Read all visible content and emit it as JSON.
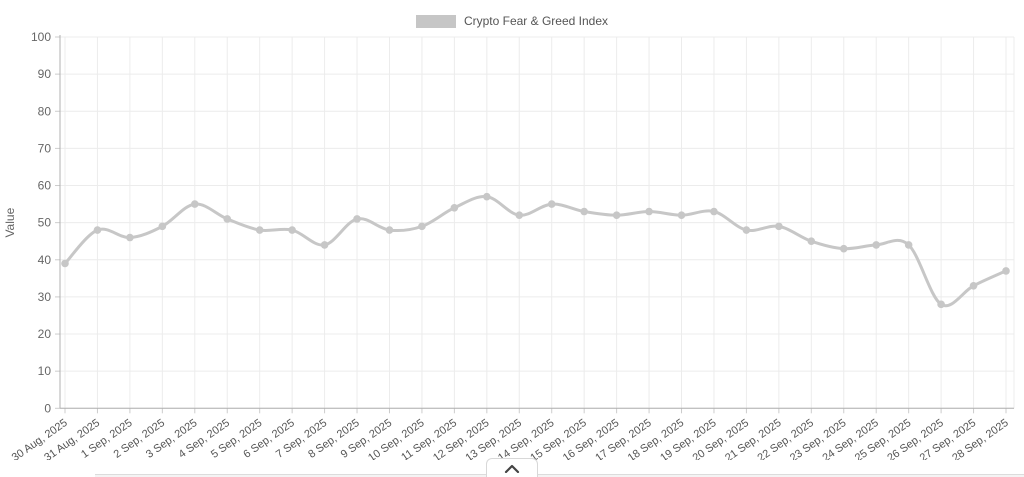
{
  "legend": {
    "label": "Crypto Fear & Greed Index",
    "swatch_color": "#c6c6c6"
  },
  "chart_data": {
    "type": "line",
    "title": "Crypto Fear & Greed Index",
    "xlabel": "",
    "ylabel": "Value",
    "ylim": [
      0,
      100
    ],
    "y_ticks": [
      0,
      10,
      20,
      30,
      40,
      50,
      60,
      70,
      80,
      90,
      100
    ],
    "grid": true,
    "legend_position": "top",
    "categories": [
      "30 Aug, 2025",
      "31 Aug, 2025",
      "1 Sep, 2025",
      "2 Sep, 2025",
      "3 Sep, 2025",
      "4 Sep, 2025",
      "5 Sep, 2025",
      "6 Sep, 2025",
      "7 Sep, 2025",
      "8 Sep, 2025",
      "9 Sep, 2025",
      "10 Sep, 2025",
      "11 Sep, 2025",
      "12 Sep, 2025",
      "13 Sep, 2025",
      "14 Sep, 2025",
      "15 Sep, 2025",
      "16 Sep, 2025",
      "17 Sep, 2025",
      "18 Sep, 2025",
      "19 Sep, 2025",
      "20 Sep, 2025",
      "21 Sep, 2025",
      "22 Sep, 2025",
      "23 Sep, 2025",
      "24 Sep, 2025",
      "25 Sep, 2025",
      "26 Sep, 2025",
      "27 Sep, 2025",
      "28 Sep, 2025"
    ],
    "series": [
      {
        "name": "Crypto Fear & Greed Index",
        "values": [
          39,
          48,
          46,
          49,
          55,
          51,
          48,
          48,
          44,
          51,
          48,
          49,
          54,
          57,
          52,
          55,
          53,
          52,
          53,
          52,
          53,
          48,
          49,
          45,
          43,
          44,
          44,
          28,
          33,
          37
        ]
      }
    ],
    "colors": {
      "line": "#c7c7c7",
      "marker": "#c7c7c7",
      "grid": "#ececec",
      "axis": "#b0b0b0",
      "tick_text": "#666666"
    }
  },
  "footer": {
    "expand_icon": "chevron-up"
  }
}
